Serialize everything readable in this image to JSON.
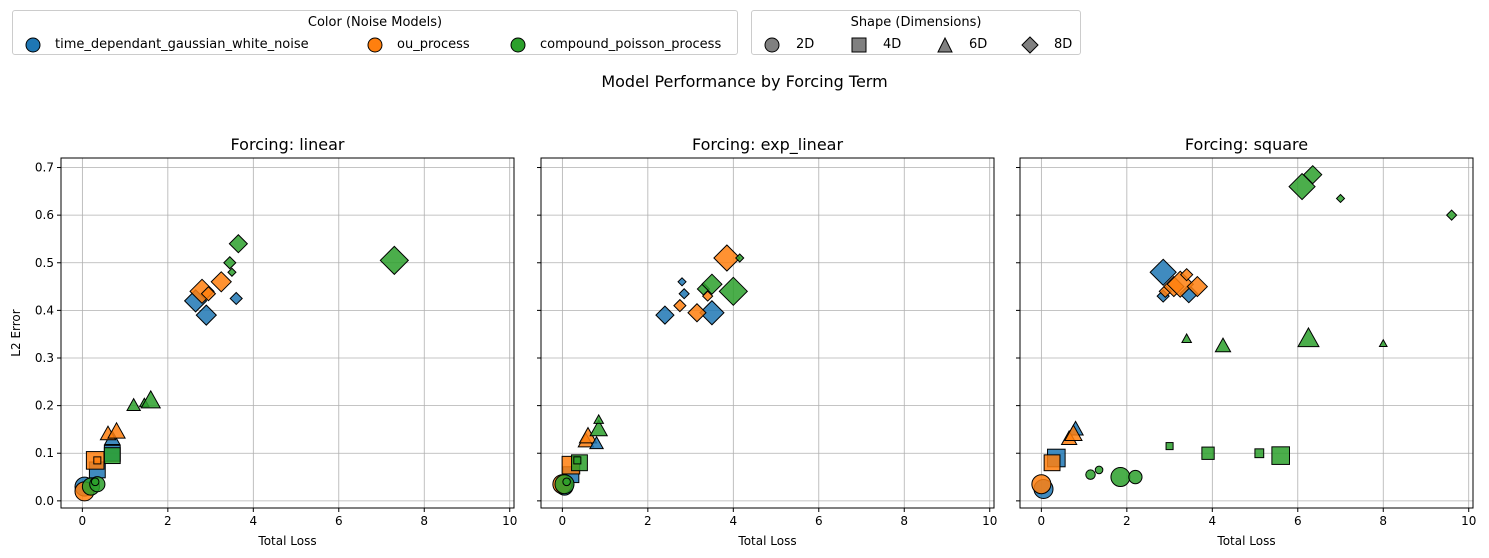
{
  "legend_color": {
    "title": "Color (Noise Models)",
    "items": [
      {
        "label": "time_dependant_gaussian_white_noise",
        "color": "#1f77b4"
      },
      {
        "label": "ou_process",
        "color": "#ff7f0e"
      },
      {
        "label": "compound_poisson_process",
        "color": "#2ca02c"
      }
    ]
  },
  "legend_shape": {
    "title": "Shape (Dimensions)",
    "items": [
      {
        "label": "2D",
        "shape": "circle"
      },
      {
        "label": "4D",
        "shape": "square"
      },
      {
        "label": "6D",
        "shape": "triangle"
      },
      {
        "label": "8D",
        "shape": "diamond"
      }
    ]
  },
  "suptitle": "Model Performance by Forcing Term",
  "chart_data": [
    {
      "type": "scatter",
      "title": "Forcing: linear",
      "xlabel": "Total Loss",
      "ylabel": "L2 Error",
      "xlim": [
        -0.5,
        10.1
      ],
      "ylim": [
        -0.015,
        0.72
      ],
      "xticks": [
        0,
        2,
        4,
        6,
        8,
        10
      ],
      "yticks": [
        0.0,
        0.1,
        0.2,
        0.3,
        0.4,
        0.5,
        0.6,
        0.7
      ],
      "grid": true,
      "points": [
        {
          "x": 2.65,
          "y": 0.42,
          "series": "time_dependant_gaussian_white_noise",
          "dim": "8D",
          "size": 11
        },
        {
          "x": 2.9,
          "y": 0.39,
          "series": "time_dependant_gaussian_white_noise",
          "dim": "8D",
          "size": 10
        },
        {
          "x": 3.6,
          "y": 0.425,
          "series": "time_dependant_gaussian_white_noise",
          "dim": "8D",
          "size": 6
        },
        {
          "x": 2.8,
          "y": 0.44,
          "series": "ou_process",
          "dim": "8D",
          "size": 12
        },
        {
          "x": 2.95,
          "y": 0.435,
          "series": "ou_process",
          "dim": "8D",
          "size": 7
        },
        {
          "x": 3.25,
          "y": 0.46,
          "series": "ou_process",
          "dim": "8D",
          "size": 10
        },
        {
          "x": 3.65,
          "y": 0.54,
          "series": "compound_poisson_process",
          "dim": "8D",
          "size": 9
        },
        {
          "x": 3.45,
          "y": 0.5,
          "series": "compound_poisson_process",
          "dim": "8D",
          "size": 6
        },
        {
          "x": 3.5,
          "y": 0.48,
          "series": "compound_poisson_process",
          "dim": "8D",
          "size": 4
        },
        {
          "x": 7.3,
          "y": 0.505,
          "series": "compound_poisson_process",
          "dim": "8D",
          "size": 14
        },
        {
          "x": 0.7,
          "y": 0.13,
          "series": "time_dependant_gaussian_white_noise",
          "dim": "6D",
          "size": 8
        },
        {
          "x": 0.6,
          "y": 0.14,
          "series": "ou_process",
          "dim": "6D",
          "size": 8
        },
        {
          "x": 0.8,
          "y": 0.145,
          "series": "ou_process",
          "dim": "6D",
          "size": 9
        },
        {
          "x": 1.2,
          "y": 0.2,
          "series": "compound_poisson_process",
          "dim": "6D",
          "size": 7
        },
        {
          "x": 1.45,
          "y": 0.205,
          "series": "compound_poisson_process",
          "dim": "6D",
          "size": 5
        },
        {
          "x": 1.6,
          "y": 0.21,
          "series": "compound_poisson_process",
          "dim": "6D",
          "size": 10
        },
        {
          "x": 0.35,
          "y": 0.065,
          "series": "time_dependant_gaussian_white_noise",
          "dim": "4D",
          "size": 9
        },
        {
          "x": 0.7,
          "y": 0.1,
          "series": "time_dependant_gaussian_white_noise",
          "dim": "4D",
          "size": 9
        },
        {
          "x": 0.3,
          "y": 0.085,
          "series": "ou_process",
          "dim": "4D",
          "size": 10
        },
        {
          "x": 0.35,
          "y": 0.085,
          "series": "ou_process",
          "dim": "4D",
          "size": 4
        },
        {
          "x": 0.7,
          "y": 0.095,
          "series": "compound_poisson_process",
          "dim": "4D",
          "size": 9
        },
        {
          "x": 0.05,
          "y": 0.03,
          "series": "time_dependant_gaussian_white_noise",
          "dim": "2D",
          "size": 10
        },
        {
          "x": 0.05,
          "y": 0.02,
          "series": "ou_process",
          "dim": "2D",
          "size": 10
        },
        {
          "x": 0.2,
          "y": 0.03,
          "series": "compound_poisson_process",
          "dim": "2D",
          "size": 9
        },
        {
          "x": 0.35,
          "y": 0.035,
          "series": "compound_poisson_process",
          "dim": "2D",
          "size": 8
        },
        {
          "x": 0.3,
          "y": 0.04,
          "series": "compound_poisson_process",
          "dim": "2D",
          "size": 4
        }
      ]
    },
    {
      "type": "scatter",
      "title": "Forcing: exp_linear",
      "xlabel": "Total Loss",
      "ylabel": "",
      "xlim": [
        -0.5,
        10.1
      ],
      "ylim": [
        -0.015,
        0.72
      ],
      "xticks": [
        0,
        2,
        4,
        6,
        8,
        10
      ],
      "yticks": [
        0.0,
        0.1,
        0.2,
        0.3,
        0.4,
        0.5,
        0.6,
        0.7
      ],
      "grid": true,
      "points": [
        {
          "x": 2.4,
          "y": 0.39,
          "series": "time_dependant_gaussian_white_noise",
          "dim": "8D",
          "size": 9
        },
        {
          "x": 2.85,
          "y": 0.435,
          "series": "time_dependant_gaussian_white_noise",
          "dim": "8D",
          "size": 5
        },
        {
          "x": 2.8,
          "y": 0.46,
          "series": "time_dependant_gaussian_white_noise",
          "dim": "8D",
          "size": 4
        },
        {
          "x": 3.5,
          "y": 0.395,
          "series": "time_dependant_gaussian_white_noise",
          "dim": "8D",
          "size": 12
        },
        {
          "x": 2.75,
          "y": 0.41,
          "series": "ou_process",
          "dim": "8D",
          "size": 6
        },
        {
          "x": 3.15,
          "y": 0.395,
          "series": "ou_process",
          "dim": "8D",
          "size": 9
        },
        {
          "x": 3.4,
          "y": 0.43,
          "series": "ou_process",
          "dim": "8D",
          "size": 5
        },
        {
          "x": 3.85,
          "y": 0.51,
          "series": "ou_process",
          "dim": "8D",
          "size": 13
        },
        {
          "x": 3.3,
          "y": 0.445,
          "series": "compound_poisson_process",
          "dim": "8D",
          "size": 6
        },
        {
          "x": 3.5,
          "y": 0.455,
          "series": "compound_poisson_process",
          "dim": "8D",
          "size": 10
        },
        {
          "x": 4.0,
          "y": 0.44,
          "series": "compound_poisson_process",
          "dim": "8D",
          "size": 14
        },
        {
          "x": 4.15,
          "y": 0.51,
          "series": "compound_poisson_process",
          "dim": "8D",
          "size": 4
        },
        {
          "x": 0.55,
          "y": 0.125,
          "series": "ou_process",
          "dim": "6D",
          "size": 8
        },
        {
          "x": 0.6,
          "y": 0.135,
          "series": "ou_process",
          "dim": "6D",
          "size": 9
        },
        {
          "x": 0.8,
          "y": 0.12,
          "series": "time_dependant_gaussian_white_noise",
          "dim": "6D",
          "size": 7
        },
        {
          "x": 0.85,
          "y": 0.15,
          "series": "compound_poisson_process",
          "dim": "6D",
          "size": 9
        },
        {
          "x": 0.85,
          "y": 0.17,
          "series": "compound_poisson_process",
          "dim": "6D",
          "size": 5
        },
        {
          "x": 0.2,
          "y": 0.055,
          "series": "time_dependant_gaussian_white_noise",
          "dim": "4D",
          "size": 9
        },
        {
          "x": 0.2,
          "y": 0.075,
          "series": "ou_process",
          "dim": "4D",
          "size": 10
        },
        {
          "x": 0.4,
          "y": 0.08,
          "series": "compound_poisson_process",
          "dim": "4D",
          "size": 9
        },
        {
          "x": 0.35,
          "y": 0.085,
          "series": "compound_poisson_process",
          "dim": "4D",
          "size": 4
        },
        {
          "x": 0.05,
          "y": 0.03,
          "series": "time_dependant_gaussian_white_noise",
          "dim": "2D",
          "size": 9
        },
        {
          "x": 0.0,
          "y": 0.035,
          "series": "ou_process",
          "dim": "2D",
          "size": 10
        },
        {
          "x": 0.05,
          "y": 0.035,
          "series": "compound_poisson_process",
          "dim": "2D",
          "size": 10
        },
        {
          "x": 0.1,
          "y": 0.04,
          "series": "compound_poisson_process",
          "dim": "2D",
          "size": 4
        }
      ]
    },
    {
      "type": "scatter",
      "title": "Forcing: square",
      "xlabel": "Total Loss",
      "ylabel": "",
      "xlim": [
        -0.5,
        10.1
      ],
      "ylim": [
        -0.015,
        0.72
      ],
      "xticks": [
        0,
        2,
        4,
        6,
        8,
        10
      ],
      "yticks": [
        0.0,
        0.1,
        0.2,
        0.3,
        0.4,
        0.5,
        0.6,
        0.7
      ],
      "grid": true,
      "points": [
        {
          "x": 2.85,
          "y": 0.43,
          "series": "time_dependant_gaussian_white_noise",
          "dim": "8D",
          "size": 6
        },
        {
          "x": 2.85,
          "y": 0.48,
          "series": "time_dependant_gaussian_white_noise",
          "dim": "8D",
          "size": 13
        },
        {
          "x": 3.45,
          "y": 0.435,
          "series": "time_dependant_gaussian_white_noise",
          "dim": "8D",
          "size": 9
        },
        {
          "x": 2.9,
          "y": 0.44,
          "series": "ou_process",
          "dim": "8D",
          "size": 6
        },
        {
          "x": 3.1,
          "y": 0.45,
          "series": "ou_process",
          "dim": "8D",
          "size": 10
        },
        {
          "x": 3.25,
          "y": 0.455,
          "series": "ou_process",
          "dim": "8D",
          "size": 13
        },
        {
          "x": 3.4,
          "y": 0.475,
          "series": "ou_process",
          "dim": "8D",
          "size": 6
        },
        {
          "x": 3.65,
          "y": 0.45,
          "series": "ou_process",
          "dim": "8D",
          "size": 10
        },
        {
          "x": 6.1,
          "y": 0.66,
          "series": "compound_poisson_process",
          "dim": "8D",
          "size": 13
        },
        {
          "x": 6.35,
          "y": 0.685,
          "series": "compound_poisson_process",
          "dim": "8D",
          "size": 9
        },
        {
          "x": 7.0,
          "y": 0.635,
          "series": "compound_poisson_process",
          "dim": "8D",
          "size": 4
        },
        {
          "x": 9.6,
          "y": 0.6,
          "series": "compound_poisson_process",
          "dim": "8D",
          "size": 5
        },
        {
          "x": 0.8,
          "y": 0.15,
          "series": "time_dependant_gaussian_white_noise",
          "dim": "6D",
          "size": 8
        },
        {
          "x": 0.65,
          "y": 0.13,
          "series": "ou_process",
          "dim": "6D",
          "size": 8
        },
        {
          "x": 0.75,
          "y": 0.14,
          "series": "ou_process",
          "dim": "6D",
          "size": 9
        },
        {
          "x": 3.4,
          "y": 0.34,
          "series": "compound_poisson_process",
          "dim": "6D",
          "size": 5
        },
        {
          "x": 4.25,
          "y": 0.325,
          "series": "compound_poisson_process",
          "dim": "6D",
          "size": 8
        },
        {
          "x": 6.25,
          "y": 0.34,
          "series": "compound_poisson_process",
          "dim": "6D",
          "size": 11
        },
        {
          "x": 8.0,
          "y": 0.33,
          "series": "compound_poisson_process",
          "dim": "6D",
          "size": 4
        },
        {
          "x": 0.35,
          "y": 0.09,
          "series": "time_dependant_gaussian_white_noise",
          "dim": "4D",
          "size": 10
        },
        {
          "x": 0.25,
          "y": 0.08,
          "series": "ou_process",
          "dim": "4D",
          "size": 9
        },
        {
          "x": 3.0,
          "y": 0.115,
          "series": "compound_poisson_process",
          "dim": "4D",
          "size": 4
        },
        {
          "x": 3.9,
          "y": 0.1,
          "series": "compound_poisson_process",
          "dim": "4D",
          "size": 7
        },
        {
          "x": 5.1,
          "y": 0.1,
          "series": "compound_poisson_process",
          "dim": "4D",
          "size": 5
        },
        {
          "x": 5.6,
          "y": 0.095,
          "series": "compound_poisson_process",
          "dim": "4D",
          "size": 10
        },
        {
          "x": 0.05,
          "y": 0.025,
          "series": "time_dependant_gaussian_white_noise",
          "dim": "2D",
          "size": 10
        },
        {
          "x": 0.0,
          "y": 0.035,
          "series": "ou_process",
          "dim": "2D",
          "size": 10
        },
        {
          "x": 1.15,
          "y": 0.055,
          "series": "compound_poisson_process",
          "dim": "2D",
          "size": 5
        },
        {
          "x": 1.35,
          "y": 0.065,
          "series": "compound_poisson_process",
          "dim": "2D",
          "size": 4
        },
        {
          "x": 1.85,
          "y": 0.05,
          "series": "compound_poisson_process",
          "dim": "2D",
          "size": 10
        },
        {
          "x": 2.2,
          "y": 0.05,
          "series": "compound_poisson_process",
          "dim": "2D",
          "size": 7
        }
      ]
    }
  ]
}
